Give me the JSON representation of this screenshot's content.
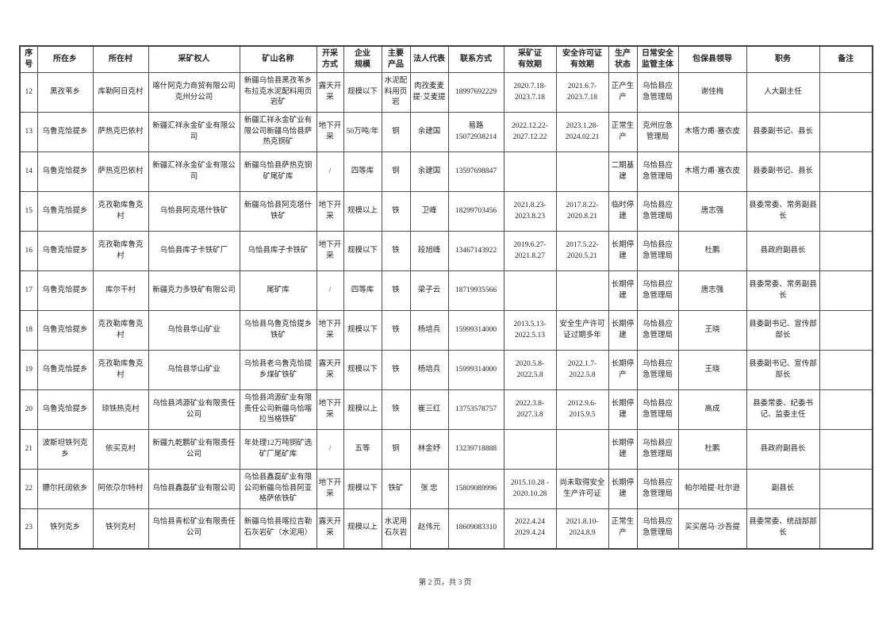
{
  "document": {
    "footer": {
      "page_info": "第 2 页，共 3 页"
    },
    "table": {
      "columns": [
        {
          "key": "xh",
          "label": "序\n号"
        },
        {
          "key": "xiang",
          "label": "所在乡"
        },
        {
          "key": "cun",
          "label": "所在村"
        },
        {
          "key": "ckqr",
          "label": "采矿权人"
        },
        {
          "key": "ksmc",
          "label": "矿山名称"
        },
        {
          "key": "ckfs",
          "label": "开采\n方式"
        },
        {
          "key": "qygm",
          "label": "企业\n规模"
        },
        {
          "key": "zycp",
          "label": "主要\n产品"
        },
        {
          "key": "frdb",
          "label": "法人代表"
        },
        {
          "key": "lxfs",
          "label": "联系方式"
        },
        {
          "key": "ckz",
          "label": "采矿证\n有效期"
        },
        {
          "key": "aqxkz",
          "label": "安全许可证\n有效期"
        },
        {
          "key": "sczt",
          "label": "生产\n状态"
        },
        {
          "key": "jg",
          "label": "日常安全\n监管主体"
        },
        {
          "key": "bbld",
          "label": "包保县领导"
        },
        {
          "key": "zw",
          "label": "职务"
        },
        {
          "key": "bz",
          "label": "备注"
        }
      ],
      "rows": [
        {
          "xh": "12",
          "xiang": "黑孜苇乡",
          "cun": "库勒阿日克村",
          "ckqr": "喀什阿克力商贸有限公司克州分公司",
          "ksmc": "新疆乌恰县黑孜苇乡布拉克水泥配料用页岩矿",
          "ckfs": "露天开采",
          "qygm": "规模以下",
          "zycp": "水泥配料用页岩",
          "frdb": "肉孜麦麦提·艾麦提",
          "lxfs": "18997692229",
          "ckz": "2020.7.18-\n2023.7.18",
          "aqxkz": "2021.6.7-\n2023.7.18",
          "sczt": "正产生产",
          "jg": "乌恰县应急管理局",
          "bbld": "谢佳梅",
          "zw": "人大副主任",
          "bz": ""
        },
        {
          "xh": "13",
          "xiang": "乌鲁克恰提乡",
          "cun": "萨热克巴依村",
          "ckqr": "新疆汇祥永金矿业有限公司",
          "ksmc": "新疆汇祥永金矿业有限公司新疆乌恰县萨热克铜矿",
          "ckfs": "地下开采",
          "qygm": "50万吨/年",
          "zycp": "铜",
          "frdb": "余建国",
          "lxfs": "易路\n15072938214",
          "ckz": "2022.12.22-\n2027.12.22",
          "aqxkz": "2023.1.28-\n2024.02.21",
          "sczt": "正常生产",
          "jg": "克州应急管理局",
          "bbld": "木塔力甫·塞衣皮",
          "zw": "县委副书记、县长",
          "bz": ""
        },
        {
          "xh": "14",
          "xiang": "乌鲁克恰提乡",
          "cun": "萨热克巴依村",
          "ckqr": "新疆汇祥永金矿业有限公司",
          "ksmc": "新疆乌恰县萨热克铜矿尾矿库",
          "ckfs": "/",
          "qygm": "四等库",
          "zycp": "铜",
          "frdb": "余建国",
          "lxfs": "13597698847",
          "ckz": "",
          "aqxkz": "",
          "sczt": "二期基建",
          "jg": "乌恰县应急管理局",
          "bbld": "木塔力甫·塞衣皮",
          "zw": "县委副书记、县长",
          "bz": ""
        },
        {
          "xh": "15",
          "xiang": "乌鲁克恰提乡",
          "cun": "克孜勒库鲁克村",
          "ckqr": "乌恰县阿克塔什铁矿",
          "ksmc": "新疆乌恰县阿克塔什铁矿",
          "ckfs": "地下开采",
          "qygm": "规模以上",
          "zycp": "铁",
          "frdb": "卫峰",
          "lxfs": "18299703456",
          "ckz": "2021.8.23-\n2023.8.23",
          "aqxkz": "2017.8.22-\n2020.8.21",
          "sczt": "临时停建",
          "jg": "乌恰县应急管理局",
          "bbld": "唐志强",
          "zw": "县委常委、常务副县长",
          "bz": ""
        },
        {
          "xh": "16",
          "xiang": "乌鲁克恰提乡",
          "cun": "克孜勒库鲁克村",
          "ckqr": "乌恰县库子卡铁矿厂",
          "ksmc": "乌恰县库子卡铁矿",
          "ckfs": "地下开采",
          "qygm": "规模以下",
          "zycp": "铁",
          "frdb": "段旭峰",
          "lxfs": "13467143922",
          "ckz": "2019.6.27-\n2021.8.27",
          "aqxkz": "2017.5.22-\n2020.5.21",
          "sczt": "长期停建",
          "jg": "乌恰县应急管理局",
          "bbld": "杜鹏",
          "zw": "县政府副县长",
          "bz": ""
        },
        {
          "xh": "17",
          "xiang": "乌鲁克恰提乡",
          "cun": "库尔干村",
          "ckqr": "新疆克力多铁矿有限公司",
          "ksmc": "尾矿库",
          "ckfs": "/",
          "qygm": "四等库",
          "zycp": "铁",
          "frdb": "梁子云",
          "lxfs": "18719935566",
          "ckz": "",
          "aqxkz": "",
          "sczt": "长期停建",
          "jg": "乌恰县应急管理局",
          "bbld": "唐志强",
          "zw": "县委常委、常务副县长",
          "bz": ""
        },
        {
          "xh": "18",
          "xiang": "乌鲁克恰提乡",
          "cun": "克孜勒库鲁克村",
          "ckqr": "乌恰县华山矿业",
          "ksmc": "乌恰县乌鲁克恰提乡铁矿",
          "ckfs": "地下开采",
          "qygm": "规模以下",
          "zycp": "铁",
          "frdb": "杨培兵",
          "lxfs": "15999314000",
          "ckz": "2013.5.13-\n2022.5.13",
          "aqxkz": "安全生产许可证过期多年",
          "sczt": "长期停建",
          "jg": "乌恰县应急管理局",
          "bbld": "王晓",
          "zw": "县委副书记、宣传部部长",
          "bz": ""
        },
        {
          "xh": "19",
          "xiang": "乌鲁克恰提乡",
          "cun": "克孜勒库鲁克村",
          "ckqr": "乌恰县华山矿业",
          "ksmc": "乌恰县老乌鲁克恰提乡煤矿铁矿",
          "ckfs": "露天开采",
          "qygm": "规模以下",
          "zycp": "铁",
          "frdb": "杨培兵",
          "lxfs": "15999314000",
          "ckz": "2020.5.8-\n2022.5.8",
          "aqxkz": "2022.1.7-\n2022.5.8",
          "sczt": "长期停产",
          "jg": "乌恰县应急管理局",
          "bbld": "王晓",
          "zw": "县委副书记、宣传部部长",
          "bz": ""
        },
        {
          "xh": "20",
          "xiang": "乌鲁克恰提乡",
          "cun": "琼铁热克村",
          "ckqr": "乌恰县鸿源矿业有限责任公司",
          "ksmc": "乌恰县鸿源矿业有限责任公司新疆乌恰喀拉当格铁矿",
          "ckfs": "地下开采",
          "qygm": "规模以上",
          "zycp": "铁",
          "frdb": "崔三红",
          "lxfs": "13753578757",
          "ckz": "2022.3.8-\n2027.3.8",
          "aqxkz": "2012.9.6-\n2015.9.5",
          "sczt": "长期停建",
          "jg": "乌恰县应急管理局",
          "bbld": "高成",
          "zw": "县委常委、纪委书记、监委主任",
          "bz": ""
        },
        {
          "xh": "21",
          "xiang": "波斯坦铁列克乡",
          "cun": "依买克村",
          "ckqr": "新疆九乾鹏矿业有限责任公司",
          "ksmc": "年处理12万吨铜矿选矿厂尾矿库",
          "ckfs": "/",
          "qygm": "五等",
          "zycp": "铜",
          "frdb": "林金妤",
          "lxfs": "13239718888",
          "ckz": "",
          "aqxkz": "",
          "sczt": "长期停建",
          "jg": "乌恰县应急管理局",
          "bbld": "杜鹏",
          "zw": "县政府副县长",
          "bz": ""
        },
        {
          "xh": "22",
          "xiang": "膘尔托阔依乡",
          "cun": "阿依尕尔特村",
          "ckqr": "乌恰县鑫磊矿业有限公司",
          "ksmc": "乌恰县鑫磊矿业有限公司新疆乌恰县阿亚格萨依铁矿",
          "ckfs": "地下开采",
          "qygm": "规模以下",
          "zycp": "铁矿",
          "frdb": "张 忠",
          "lxfs": "15809089996",
          "ckz": "2015.10.28 -\n2020.10.28",
          "aqxkz": "尚未取得安全生产许可证",
          "sczt": "长期停建",
          "jg": "乌恰县应急管理局",
          "bbld": "帕尔哈提·吐尔逊",
          "zw": "副县长",
          "bz": ""
        },
        {
          "xh": "23",
          "xiang": "铁列克乡",
          "cun": "铁列克村",
          "ckqr": "乌恰县青松矿业有限责任公司",
          "ksmc": "新疆乌恰县喀拉吉勒石灰岩矿（水泥用）",
          "ckfs": "露天开采",
          "qygm": "规模以上",
          "zycp": "水泥用石灰岩",
          "frdb": "赵伟元",
          "lxfs": "18609083310",
          "ckz": "2022.4.24\n2029.4.24",
          "aqxkz": "2021.8.10-\n2024.8.9",
          "sczt": "正常生产",
          "jg": "乌恰县应急管理局",
          "bbld": "买买居马·沙吾提",
          "zw": "县委常委、统战部部长",
          "bz": ""
        }
      ]
    }
  }
}
